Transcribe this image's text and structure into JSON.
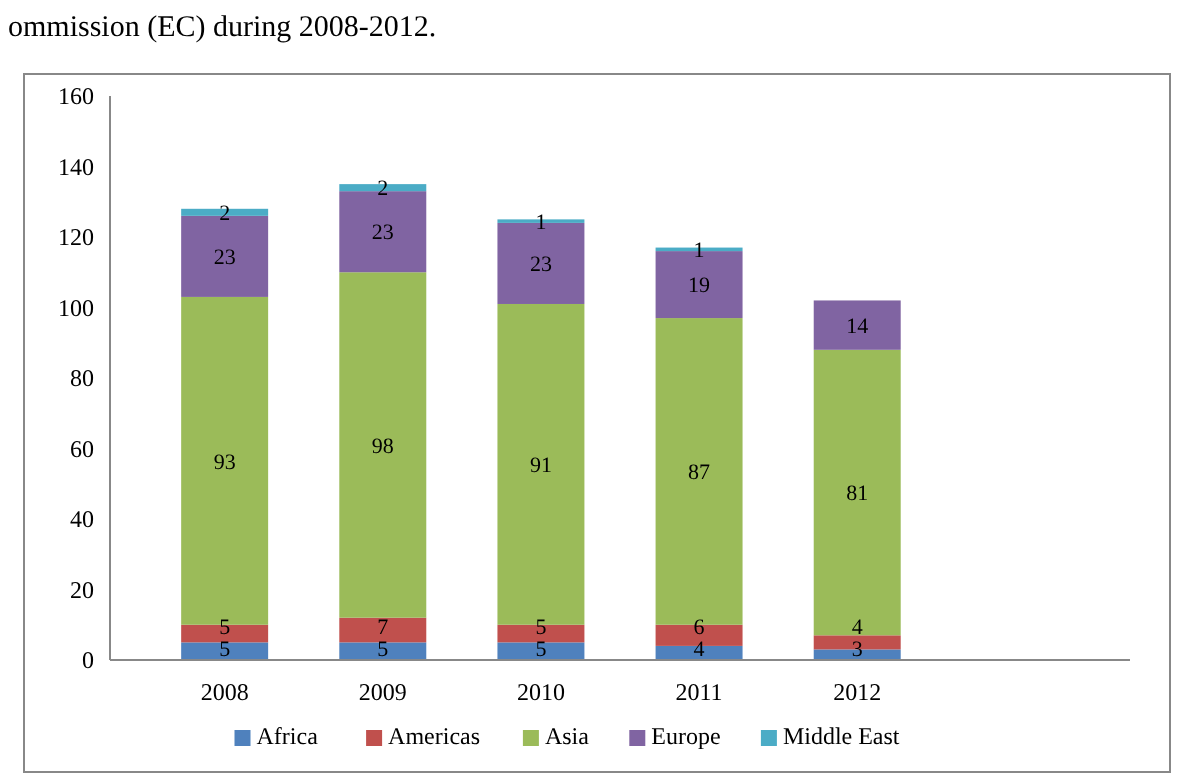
{
  "chart_data": {
    "type": "bar",
    "stacked": true,
    "categories": [
      "2008",
      "2009",
      "2010",
      "2011",
      "2012",
      null
    ],
    "series": [
      {
        "name": "Africa",
        "color": "#4f81bd",
        "values": [
          5,
          5,
          5,
          4,
          3,
          null
        ]
      },
      {
        "name": "Americas",
        "color": "#c0504d",
        "values": [
          5,
          7,
          5,
          6,
          4,
          null
        ]
      },
      {
        "name": "Asia",
        "color": "#9bbb59",
        "values": [
          93,
          98,
          91,
          87,
          81,
          null
        ]
      },
      {
        "name": "Europe",
        "color": "#8064a2",
        "values": [
          23,
          23,
          23,
          19,
          14,
          null
        ]
      },
      {
        "name": "Middle East",
        "color": "#4bacc6",
        "values": [
          2,
          2,
          1,
          1,
          null,
          null
        ]
      }
    ],
    "ylim": [
      0,
      160
    ],
    "yticks": [
      0,
      20,
      40,
      60,
      80,
      100,
      120,
      140,
      160
    ],
    "grid": false,
    "legend": "bottom",
    "data_labels": true,
    "annotations": [
      "ommission (EC) during 2008-2012."
    ]
  }
}
